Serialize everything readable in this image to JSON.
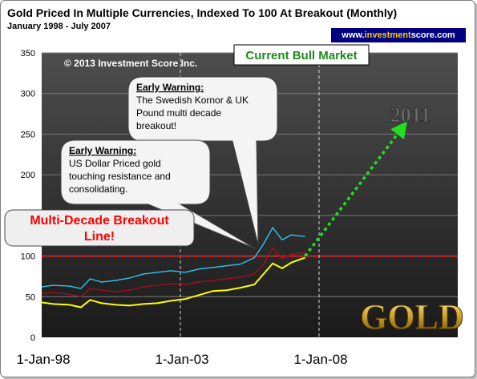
{
  "header": {
    "title": "Gold Priced In Multiple Currencies, Indexed To 100 At Breakout (Monthly)",
    "subtitle": "January 1998  - July 2007",
    "url_prefix": "www.",
    "url_highlight": "investment",
    "url_suffix": "score.com"
  },
  "chart_data": {
    "type": "line",
    "copyright": "© 2013 Investment Score Inc.",
    "x_ticks": [
      "1-Jan-98",
      "1-Jan-03",
      "1-Jan-08"
    ],
    "xlim": [
      "1998-01-01",
      "2012-12-31"
    ],
    "y_ticks": [
      "0",
      "50",
      "100",
      "150",
      "200",
      "250",
      "300",
      "350"
    ],
    "ylim": [
      0,
      350
    ],
    "grid": true,
    "breakout_level": 100,
    "series": [
      {
        "color": "#ffff00",
        "points": [
          [
            "1998-01-01",
            43
          ],
          [
            "1998-06-01",
            41
          ],
          [
            "1999-01-01",
            40
          ],
          [
            "1999-06-01",
            37
          ],
          [
            "1999-10-01",
            46
          ],
          [
            "2000-03-01",
            42
          ],
          [
            "2000-09-01",
            40
          ],
          [
            "2001-03-01",
            39
          ],
          [
            "2001-09-01",
            41
          ],
          [
            "2002-03-01",
            42
          ],
          [
            "2002-09-01",
            45
          ],
          [
            "2003-03-01",
            47
          ],
          [
            "2003-09-01",
            52
          ],
          [
            "2004-03-01",
            57
          ],
          [
            "2004-09-01",
            58
          ],
          [
            "2005-03-01",
            61
          ],
          [
            "2005-09-01",
            65
          ],
          [
            "2006-01-01",
            78
          ],
          [
            "2006-05-01",
            91
          ],
          [
            "2006-09-01",
            85
          ],
          [
            "2007-01-01",
            92
          ],
          [
            "2007-07-01",
            98
          ]
        ]
      },
      {
        "color": "#a0101e",
        "points": [
          [
            "1998-01-01",
            54
          ],
          [
            "1998-06-01",
            55
          ],
          [
            "1999-01-01",
            53
          ],
          [
            "1999-06-01",
            50
          ],
          [
            "1999-10-01",
            60
          ],
          [
            "2000-03-01",
            58
          ],
          [
            "2000-09-01",
            56
          ],
          [
            "2001-03-01",
            58
          ],
          [
            "2001-09-01",
            62
          ],
          [
            "2002-03-01",
            64
          ],
          [
            "2002-09-01",
            66
          ],
          [
            "2003-03-01",
            65
          ],
          [
            "2003-09-01",
            68
          ],
          [
            "2004-03-01",
            70
          ],
          [
            "2004-09-01",
            72
          ],
          [
            "2005-03-01",
            74
          ],
          [
            "2005-09-01",
            78
          ],
          [
            "2006-01-01",
            90
          ],
          [
            "2006-05-01",
            110
          ],
          [
            "2006-09-01",
            97
          ],
          [
            "2007-01-01",
            102
          ],
          [
            "2007-07-01",
            104
          ]
        ]
      },
      {
        "color": "#2fc5f2",
        "points": [
          [
            "1998-01-01",
            62
          ],
          [
            "1998-06-01",
            64
          ],
          [
            "1999-01-01",
            63
          ],
          [
            "1999-06-01",
            60
          ],
          [
            "1999-10-01",
            72
          ],
          [
            "2000-03-01",
            68
          ],
          [
            "2000-09-01",
            70
          ],
          [
            "2001-03-01",
            73
          ],
          [
            "2001-09-01",
            78
          ],
          [
            "2002-03-01",
            80
          ],
          [
            "2002-09-01",
            82
          ],
          [
            "2003-03-01",
            80
          ],
          [
            "2003-09-01",
            84
          ],
          [
            "2004-03-01",
            86
          ],
          [
            "2004-09-01",
            88
          ],
          [
            "2005-03-01",
            90
          ],
          [
            "2005-09-01",
            98
          ],
          [
            "2006-01-01",
            115
          ],
          [
            "2006-05-01",
            135
          ],
          [
            "2006-09-01",
            120
          ],
          [
            "2007-01-01",
            126
          ],
          [
            "2007-07-01",
            124
          ]
        ]
      }
    ],
    "annotations": {
      "bull_market": "Current Bull Market",
      "warning1_title": "Early Warning:",
      "warning1_lines": [
        "The Swedish Kornor & UK",
        "Pound multi decade",
        "breakout!"
      ],
      "warning2_title": "Early Warning:",
      "warning2_lines": [
        "US Dollar Priced gold",
        "touching resistance and",
        "consolidating."
      ],
      "breakout_lines": [
        "Multi-Decade Breakout",
        "Line!"
      ],
      "target_label": "2011",
      "gold_label": "GOLD"
    },
    "arrow": {
      "from": [
        "2007-07-01",
        100
      ],
      "to": [
        "2011-01-01",
        258
      ],
      "color": "#22dd22"
    }
  }
}
